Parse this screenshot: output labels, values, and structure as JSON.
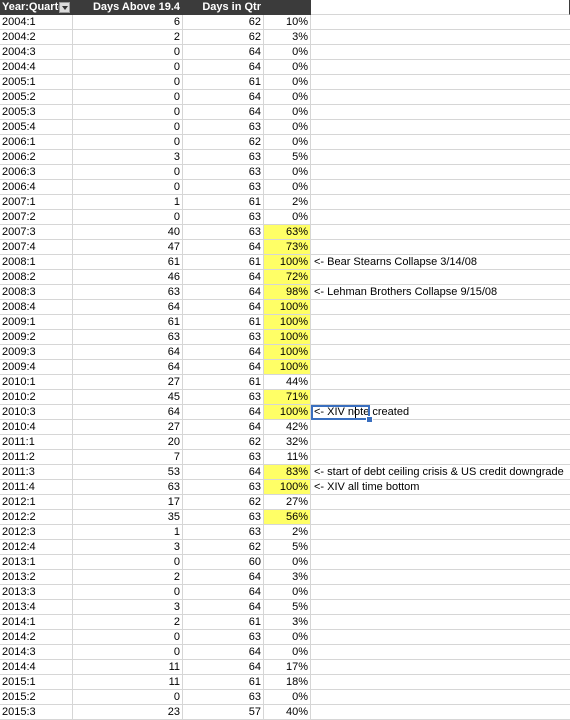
{
  "header": {
    "col0": "Year:Quarter",
    "col1": "Days Above 19.4",
    "col2": "Days in Qtr"
  },
  "colors": {
    "highlight": "#ffff66",
    "header_bg": "#3b3b3b",
    "selection": "#3a6fbf"
  },
  "icons": {
    "filter": "dropdown-filter-icon"
  },
  "rows": [
    {
      "q": "2004:1",
      "above": "6",
      "days": "62",
      "pct": "10%",
      "hl": false,
      "note": ""
    },
    {
      "q": "2004:2",
      "above": "2",
      "days": "62",
      "pct": "3%",
      "hl": false,
      "note": ""
    },
    {
      "q": "2004:3",
      "above": "0",
      "days": "64",
      "pct": "0%",
      "hl": false,
      "note": ""
    },
    {
      "q": "2004:4",
      "above": "0",
      "days": "64",
      "pct": "0%",
      "hl": false,
      "note": ""
    },
    {
      "q": "2005:1",
      "above": "0",
      "days": "61",
      "pct": "0%",
      "hl": false,
      "note": ""
    },
    {
      "q": "2005:2",
      "above": "0",
      "days": "64",
      "pct": "0%",
      "hl": false,
      "note": ""
    },
    {
      "q": "2005:3",
      "above": "0",
      "days": "64",
      "pct": "0%",
      "hl": false,
      "note": ""
    },
    {
      "q": "2005:4",
      "above": "0",
      "days": "63",
      "pct": "0%",
      "hl": false,
      "note": ""
    },
    {
      "q": "2006:1",
      "above": "0",
      "days": "62",
      "pct": "0%",
      "hl": false,
      "note": ""
    },
    {
      "q": "2006:2",
      "above": "3",
      "days": "63",
      "pct": "5%",
      "hl": false,
      "note": ""
    },
    {
      "q": "2006:3",
      "above": "0",
      "days": "63",
      "pct": "0%",
      "hl": false,
      "note": ""
    },
    {
      "q": "2006:4",
      "above": "0",
      "days": "63",
      "pct": "0%",
      "hl": false,
      "note": ""
    },
    {
      "q": "2007:1",
      "above": "1",
      "days": "61",
      "pct": "2%",
      "hl": false,
      "note": ""
    },
    {
      "q": "2007:2",
      "above": "0",
      "days": "63",
      "pct": "0%",
      "hl": false,
      "note": ""
    },
    {
      "q": "2007:3",
      "above": "40",
      "days": "63",
      "pct": "63%",
      "hl": true,
      "note": ""
    },
    {
      "q": "2007:4",
      "above": "47",
      "days": "64",
      "pct": "73%",
      "hl": true,
      "note": ""
    },
    {
      "q": "2008:1",
      "above": "61",
      "days": "61",
      "pct": "100%",
      "hl": true,
      "note": "<- Bear Stearns Collapse 3/14/08"
    },
    {
      "q": "2008:2",
      "above": "46",
      "days": "64",
      "pct": "72%",
      "hl": true,
      "note": ""
    },
    {
      "q": "2008:3",
      "above": "63",
      "days": "64",
      "pct": "98%",
      "hl": true,
      "note": "<- Lehman Brothers Collapse 9/15/08"
    },
    {
      "q": "2008:4",
      "above": "64",
      "days": "64",
      "pct": "100%",
      "hl": true,
      "note": ""
    },
    {
      "q": "2009:1",
      "above": "61",
      "days": "61",
      "pct": "100%",
      "hl": true,
      "note": ""
    },
    {
      "q": "2009:2",
      "above": "63",
      "days": "63",
      "pct": "100%",
      "hl": true,
      "note": ""
    },
    {
      "q": "2009:3",
      "above": "64",
      "days": "64",
      "pct": "100%",
      "hl": true,
      "note": ""
    },
    {
      "q": "2009:4",
      "above": "64",
      "days": "64",
      "pct": "100%",
      "hl": true,
      "note": ""
    },
    {
      "q": "2010:1",
      "above": "27",
      "days": "61",
      "pct": "44%",
      "hl": false,
      "note": ""
    },
    {
      "q": "2010:2",
      "above": "45",
      "days": "63",
      "pct": "71%",
      "hl": true,
      "note": ""
    },
    {
      "q": "2010:3",
      "above": "64",
      "days": "64",
      "pct": "100%",
      "hl": true,
      "note": "<- XIV note created"
    },
    {
      "q": "2010:4",
      "above": "27",
      "days": "64",
      "pct": "42%",
      "hl": false,
      "note": ""
    },
    {
      "q": "2011:1",
      "above": "20",
      "days": "62",
      "pct": "32%",
      "hl": false,
      "note": ""
    },
    {
      "q": "2011:2",
      "above": "7",
      "days": "63",
      "pct": "11%",
      "hl": false,
      "note": ""
    },
    {
      "q": "2011:3",
      "above": "53",
      "days": "64",
      "pct": "83%",
      "hl": true,
      "note": "<- start of debt ceiling crisis & US credit downgrade"
    },
    {
      "q": "2011:4",
      "above": "63",
      "days": "63",
      "pct": "100%",
      "hl": true,
      "note": "<- XIV all time bottom"
    },
    {
      "q": "2012:1",
      "above": "17",
      "days": "62",
      "pct": "27%",
      "hl": false,
      "note": ""
    },
    {
      "q": "2012:2",
      "above": "35",
      "days": "63",
      "pct": "56%",
      "hl": true,
      "note": ""
    },
    {
      "q": "2012:3",
      "above": "1",
      "days": "63",
      "pct": "2%",
      "hl": false,
      "note": ""
    },
    {
      "q": "2012:4",
      "above": "3",
      "days": "62",
      "pct": "5%",
      "hl": false,
      "note": ""
    },
    {
      "q": "2013:1",
      "above": "0",
      "days": "60",
      "pct": "0%",
      "hl": false,
      "note": ""
    },
    {
      "q": "2013:2",
      "above": "2",
      "days": "64",
      "pct": "3%",
      "hl": false,
      "note": ""
    },
    {
      "q": "2013:3",
      "above": "0",
      "days": "64",
      "pct": "0%",
      "hl": false,
      "note": ""
    },
    {
      "q": "2013:4",
      "above": "3",
      "days": "64",
      "pct": "5%",
      "hl": false,
      "note": ""
    },
    {
      "q": "2014:1",
      "above": "2",
      "days": "61",
      "pct": "3%",
      "hl": false,
      "note": ""
    },
    {
      "q": "2014:2",
      "above": "0",
      "days": "63",
      "pct": "0%",
      "hl": false,
      "note": ""
    },
    {
      "q": "2014:3",
      "above": "0",
      "days": "64",
      "pct": "0%",
      "hl": false,
      "note": ""
    },
    {
      "q": "2014:4",
      "above": "11",
      "days": "64",
      "pct": "17%",
      "hl": false,
      "note": ""
    },
    {
      "q": "2015:1",
      "above": "11",
      "days": "61",
      "pct": "18%",
      "hl": false,
      "note": ""
    },
    {
      "q": "2015:2",
      "above": "0",
      "days": "63",
      "pct": "0%",
      "hl": false,
      "note": ""
    },
    {
      "q": "2015:3",
      "above": "23",
      "days": "57",
      "pct": "40%",
      "hl": false,
      "note": ""
    }
  ]
}
